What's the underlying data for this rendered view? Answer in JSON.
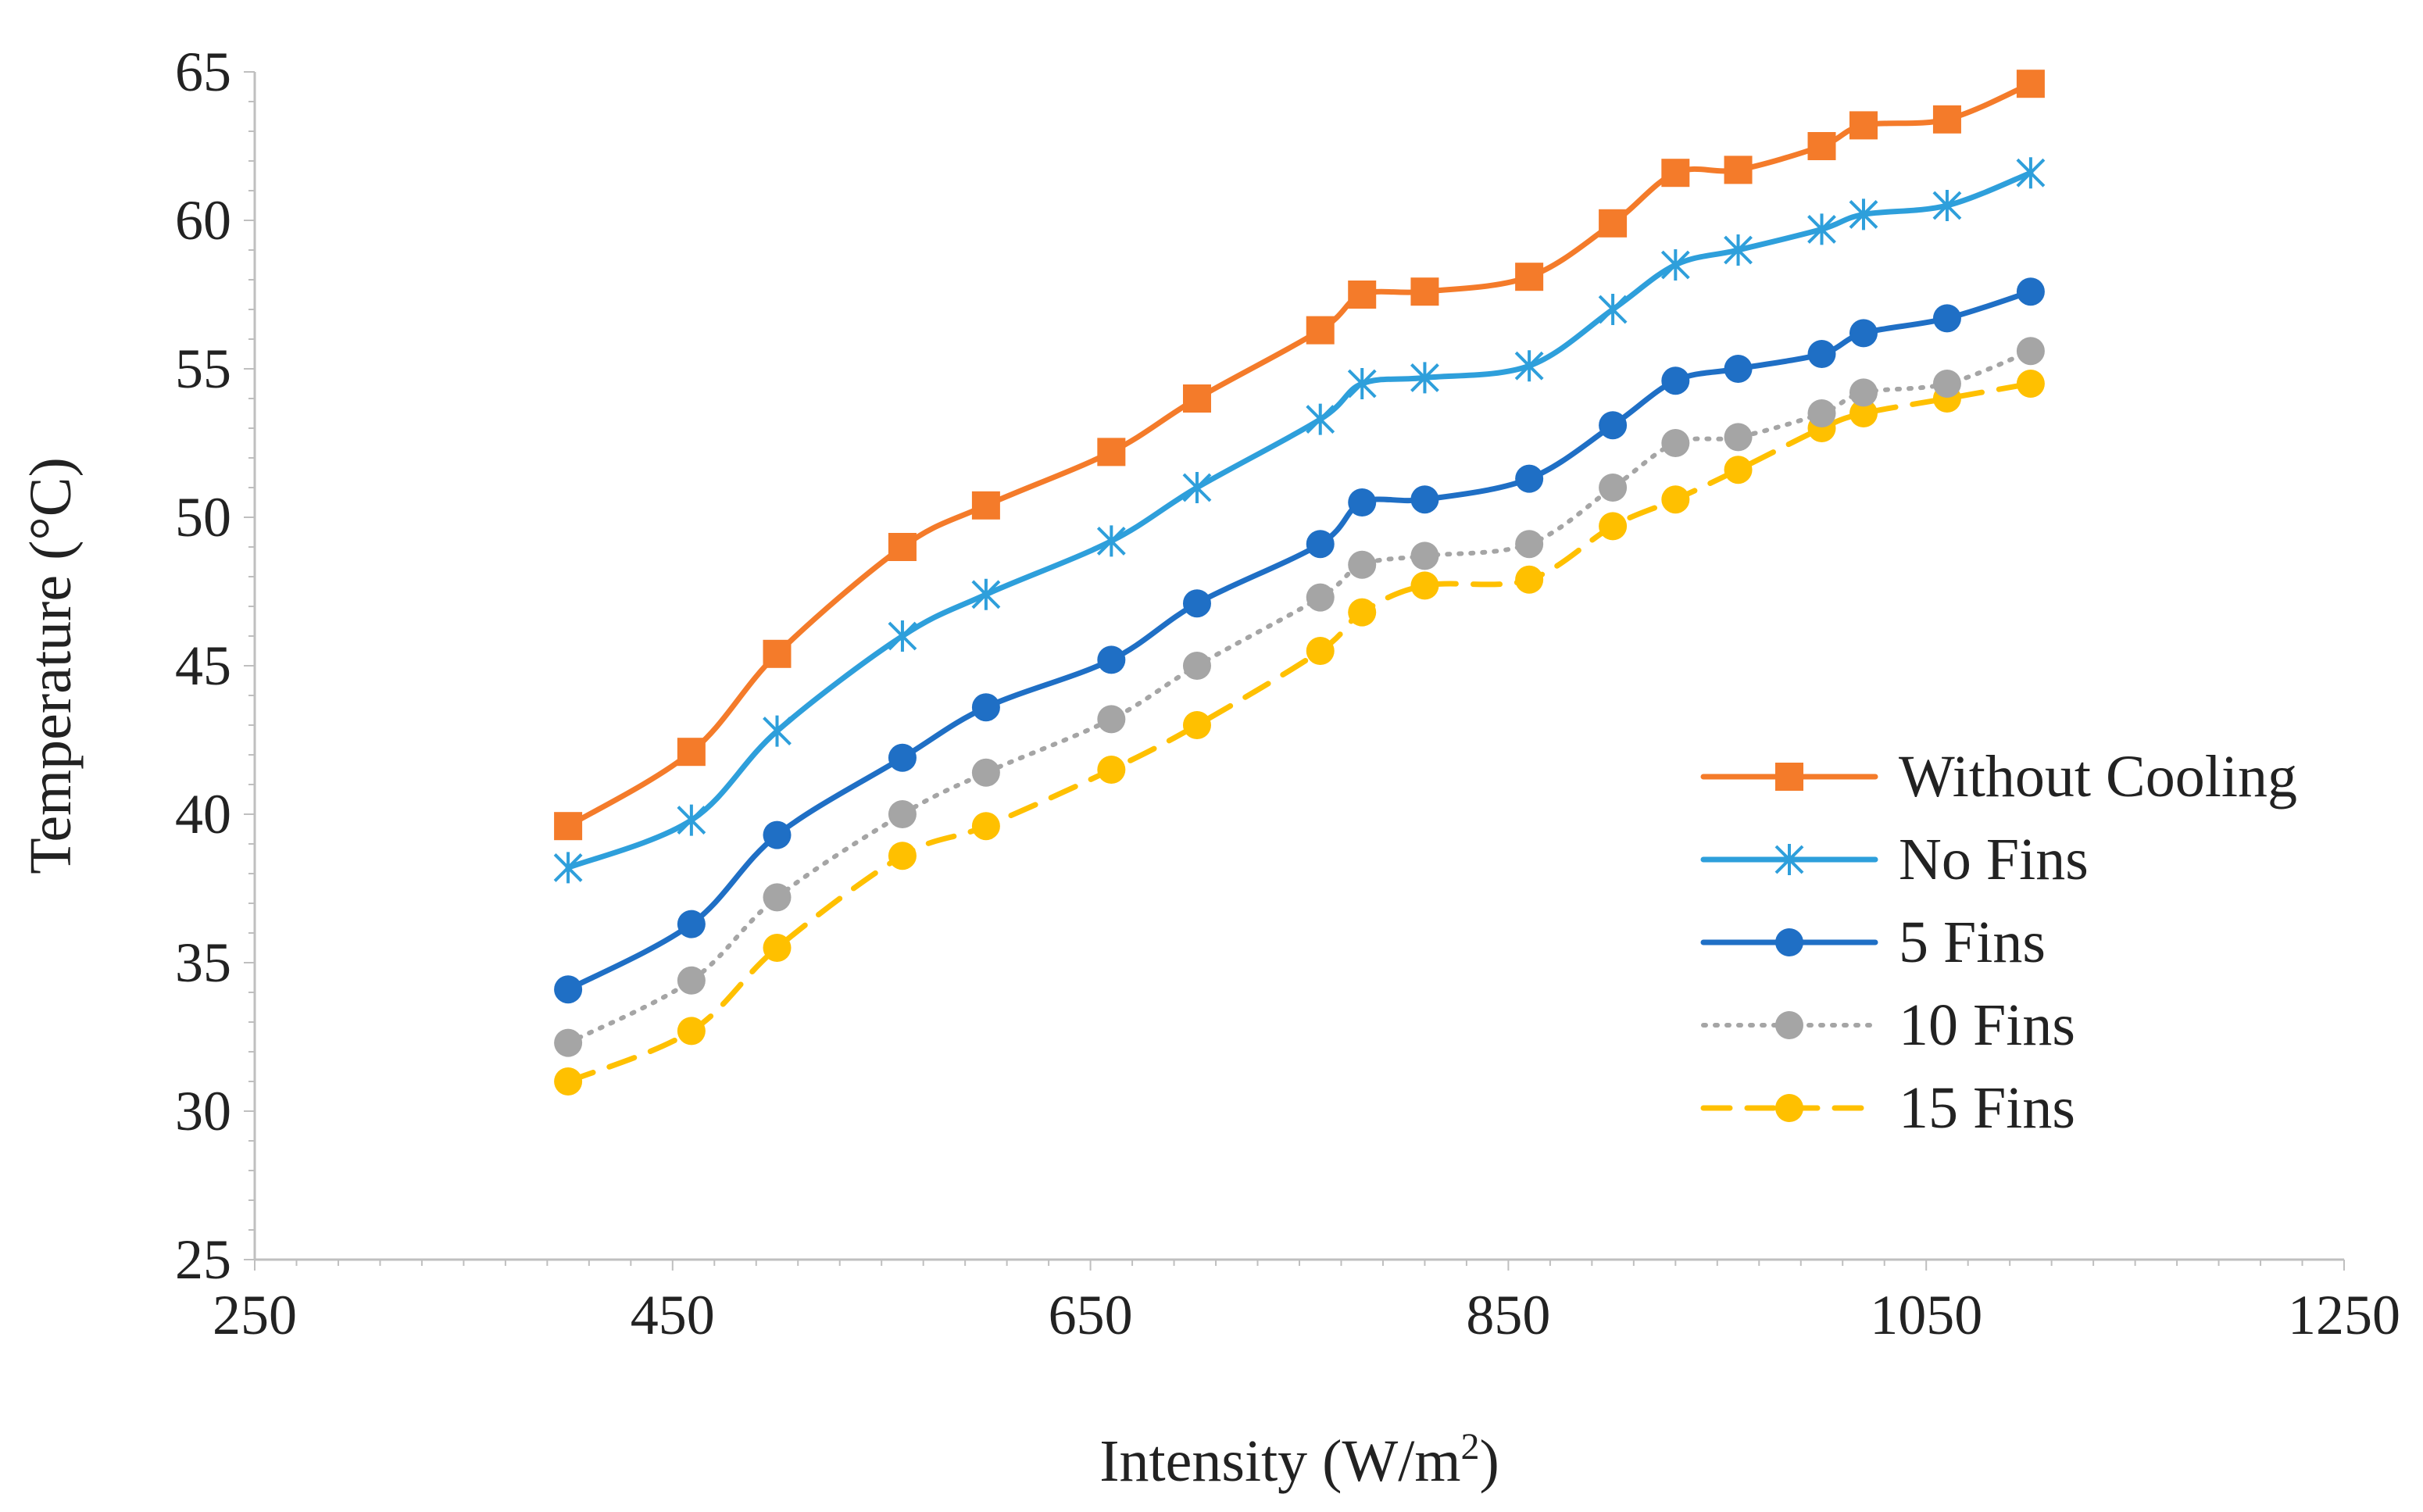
{
  "chart_data": {
    "type": "line",
    "title": "",
    "xlabel": "Intensity (W/m",
    "xlabel_sup": "2",
    "xlabel_end": ")",
    "ylabel": "Temperature (°C)",
    "xlim": [
      250,
      1250
    ],
    "ylim": [
      25,
      65
    ],
    "xticks": [
      250,
      450,
      650,
      850,
      1050,
      1250
    ],
    "yticks": [
      25,
      30,
      35,
      40,
      45,
      50,
      55,
      60,
      65
    ],
    "grid": false,
    "legend_position": "right",
    "x": [
      400,
      459,
      500,
      560,
      600,
      660,
      701,
      760,
      780,
      810,
      860,
      900,
      930,
      960,
      1000,
      1020,
      1060,
      1100
    ],
    "series": [
      {
        "name": "Without Cooling",
        "color": "#F47B2A",
        "marker": "square",
        "dash": "solid",
        "values": [
          39.6,
          42.1,
          45.4,
          49.0,
          50.4,
          52.2,
          54.0,
          56.3,
          57.5,
          57.6,
          58.1,
          59.9,
          61.6,
          61.7,
          62.5,
          63.2,
          63.4,
          64.6
        ]
      },
      {
        "name": "No Fins",
        "color": "#2E9FDB",
        "marker": "asterisk",
        "dash": "solid",
        "values": [
          38.2,
          39.8,
          42.8,
          46.0,
          47.4,
          49.2,
          51.0,
          53.3,
          54.5,
          54.7,
          55.1,
          57.0,
          58.5,
          59.0,
          59.7,
          60.2,
          60.5,
          61.6
        ]
      },
      {
        "name": "5 Fins",
        "color": "#1F6FC5",
        "marker": "circle",
        "dash": "solid",
        "values": [
          34.1,
          36.3,
          39.3,
          41.9,
          43.6,
          45.2,
          47.1,
          49.1,
          50.5,
          50.6,
          51.3,
          53.1,
          54.6,
          55.0,
          55.5,
          56.2,
          56.7,
          57.6
        ]
      },
      {
        "name": "10 Fins",
        "color": "#A5A5A5",
        "marker": "circle",
        "dash": "dot",
        "values": [
          32.3,
          34.4,
          37.2,
          40.0,
          41.4,
          43.2,
          45.0,
          47.3,
          48.4,
          48.7,
          49.1,
          51.0,
          52.5,
          52.7,
          53.5,
          54.2,
          54.5,
          55.6
        ]
      },
      {
        "name": "15 Fins",
        "color": "#FFC000",
        "marker": "circle",
        "dash": "dash",
        "values": [
          31.0,
          32.7,
          35.5,
          38.6,
          39.6,
          41.5,
          43.0,
          45.5,
          46.8,
          47.7,
          47.9,
          49.7,
          50.6,
          51.6,
          53.0,
          53.5,
          54.0,
          54.5
        ]
      }
    ]
  }
}
